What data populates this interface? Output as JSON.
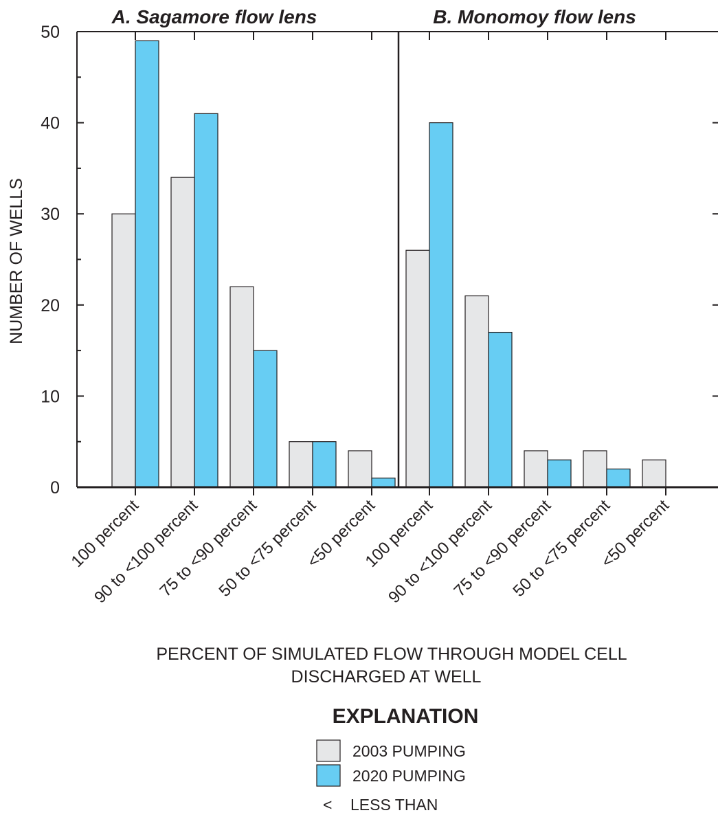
{
  "chart_data": {
    "type": "bar",
    "ylabel": "NUMBER OF WELLS",
    "xlabel_lines": [
      "PERCENT OF SIMULATED FLOW THROUGH MODEL CELL",
      "DISCHARGED AT WELL"
    ],
    "ylim": [
      0,
      50
    ],
    "yticks": [
      0,
      10,
      20,
      30,
      40,
      50
    ],
    "ytick_labels": [
      "0",
      "10",
      "20",
      "30",
      "40",
      "50"
    ],
    "grid": false,
    "series_names": [
      "2003 PUMPING",
      "2020 PUMPING"
    ],
    "colors": [
      "#e6e7e8",
      "#67cdf3"
    ],
    "panels": [
      {
        "title": "A. Sagamore flow lens",
        "categories": [
          "100 percent",
          "90 to <100 percent",
          "75 to <90 percent",
          "50 to <75 percent",
          "<50 percent"
        ],
        "series": [
          {
            "name": "2003 PUMPING",
            "values": [
              30,
              34,
              22,
              5,
              4
            ]
          },
          {
            "name": "2020 PUMPING",
            "values": [
              49,
              41,
              15,
              5,
              1
            ]
          }
        ]
      },
      {
        "title": "B. Monomoy flow lens",
        "categories": [
          "100 percent",
          "90 to <100 percent",
          "75 to <90 percent",
          "50 to <75 percent",
          "<50 percent"
        ],
        "series": [
          {
            "name": "2003 PUMPING",
            "values": [
              26,
              21,
              4,
              4,
              3
            ]
          },
          {
            "name": "2020 PUMPING",
            "values": [
              40,
              17,
              3,
              2,
              0
            ]
          }
        ]
      }
    ]
  },
  "legend": {
    "title": "EXPLANATION",
    "items": [
      {
        "label": "2003 PUMPING",
        "color": "#e6e7e8"
      },
      {
        "label": "2020 PUMPING",
        "color": "#67cdf3"
      }
    ],
    "note_symbol": "<",
    "note_text": "LESS THAN"
  }
}
